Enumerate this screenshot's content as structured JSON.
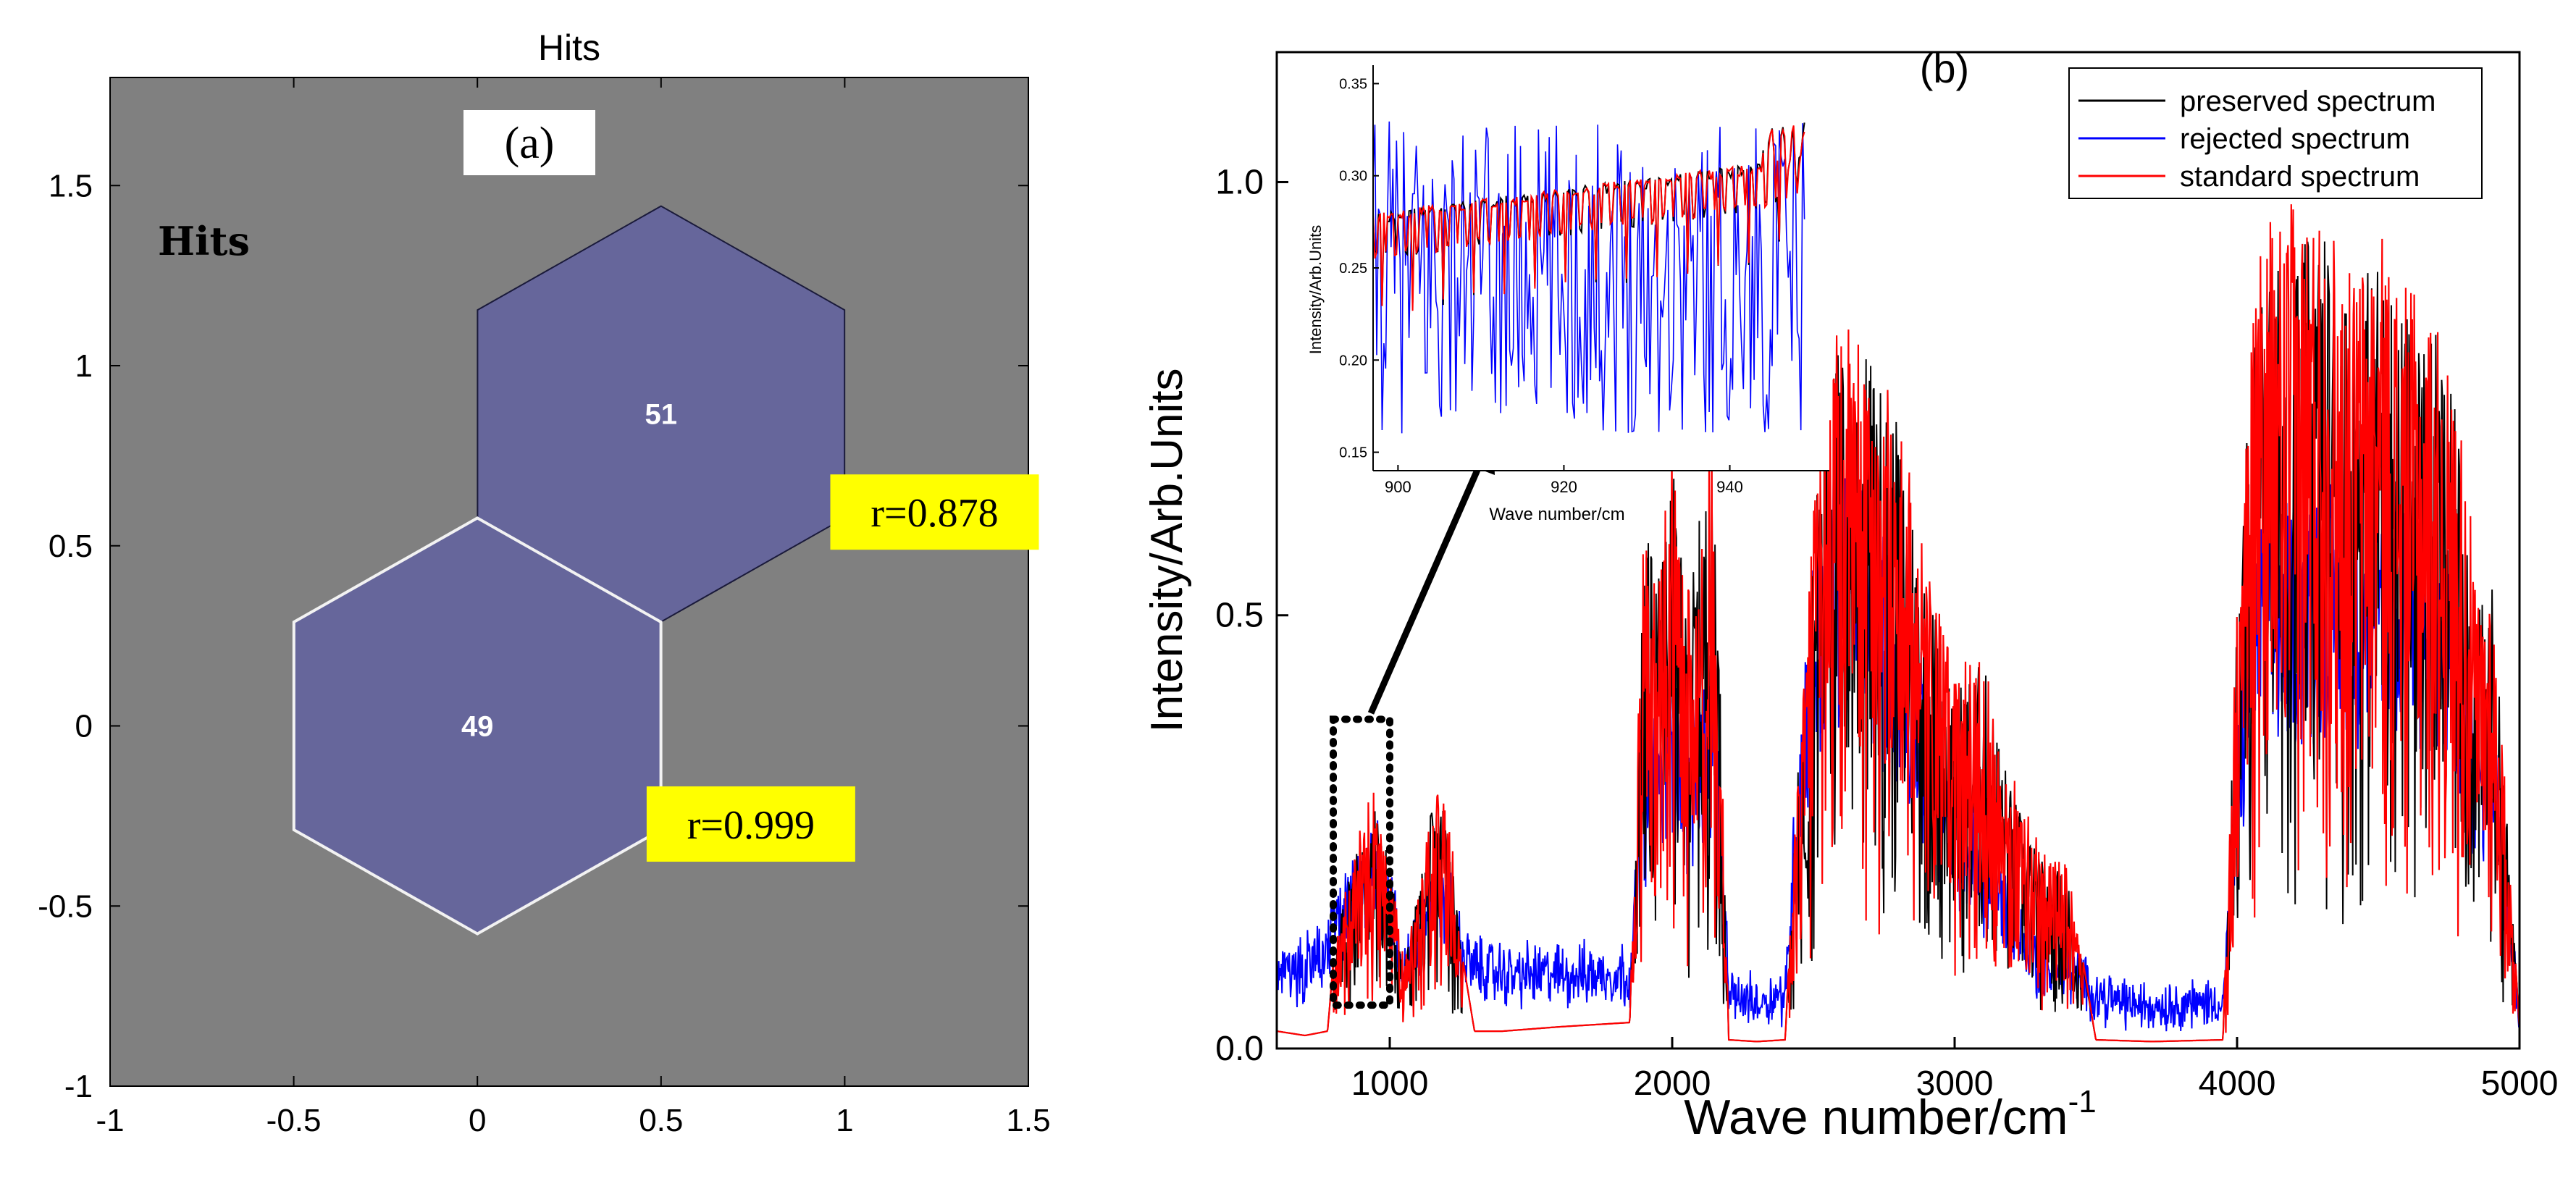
{
  "chart_data": [
    {
      "type": "hexbin",
      "panel_label": "(a)",
      "title": "Hits",
      "legend_text": "Hits",
      "xlim": [
        -1,
        1.5
      ],
      "ylim": [
        -1,
        1.8
      ],
      "xticks": [
        -1,
        -0.5,
        0,
        0.5,
        1,
        1.5
      ],
      "xtick_labels": [
        "-1",
        "-0.5",
        "0",
        "0.5",
        "1",
        "1.5"
      ],
      "yticks": [
        -1,
        -0.5,
        0,
        0.5,
        1,
        1.5
      ],
      "ytick_labels": [
        "-1",
        "-0.5",
        "0",
        "0.5",
        "1",
        "1.5"
      ],
      "hexagons": [
        {
          "cx": 0.5,
          "cy": 0.866,
          "hits": "51",
          "correlation": "r=0.878",
          "highlighted": false
        },
        {
          "cx": 0,
          "cy": 0,
          "hits": "49",
          "correlation": "r=0.999",
          "highlighted": true
        }
      ],
      "hex_radius": 0.577,
      "background_color": "#808080",
      "hex_color": "#66669b"
    },
    {
      "type": "line",
      "panel_label": "(b)",
      "xlabel": "Wave number/cm",
      "xlabel_sup": "-1",
      "ylabel": "Intensity/Arb.Units",
      "xlim": [
        600,
        5000
      ],
      "ylim": [
        0,
        1.15
      ],
      "xticks": [
        1000,
        2000,
        3000,
        4000,
        5000
      ],
      "xtick_labels": [
        "1000",
        "2000",
        "3000",
        "4000",
        "5000"
      ],
      "yticks": [
        0,
        0.5,
        1.0
      ],
      "ytick_labels": [
        "0.0",
        "0.5",
        "1.0"
      ],
      "series": [
        {
          "name": "preserved spectrum",
          "color": "#000000",
          "envelope_x": [
            600,
            700,
            780,
            800,
            850,
            900,
            950,
            1000,
            1050,
            1100,
            1150,
            1200,
            1250,
            1300,
            1400,
            1600,
            1850,
            1900,
            1950,
            2000,
            2050,
            2100,
            2150,
            2200,
            2300,
            2400,
            2450,
            2500,
            2550,
            2600,
            2700,
            2800,
            2900,
            3000,
            3100,
            3200,
            3300,
            3400,
            3500,
            3700,
            3950,
            4000,
            4050,
            4100,
            4200,
            4300,
            4400,
            4500,
            4600,
            4700,
            4800,
            4850,
            4900,
            4950,
            5000
          ],
          "envelope_y": [
            0.02,
            0.015,
            0.02,
            0.1,
            0.2,
            0.26,
            0.28,
            0.22,
            0.1,
            0.18,
            0.28,
            0.3,
            0.12,
            0.02,
            0.02,
            0.025,
            0.03,
            0.6,
            0.55,
            0.68,
            0.5,
            0.62,
            0.7,
            0.01,
            0.008,
            0.01,
            0.35,
            0.6,
            0.8,
            0.82,
            0.8,
            0.72,
            0.55,
            0.42,
            0.45,
            0.3,
            0.22,
            0.2,
            0.01,
            0.008,
            0.01,
            0.5,
            0.82,
            0.9,
            0.92,
            0.95,
            0.88,
            0.92,
            0.85,
            0.83,
            0.7,
            0.5,
            0.55,
            0.3,
            0.02
          ]
        },
        {
          "name": "rejected spectrum",
          "color": "#0000ff",
          "envelope_x": [
            600,
            700,
            780,
            800,
            850,
            900,
            950,
            1000,
            1050,
            1100,
            1150,
            1200,
            1250,
            1300,
            1400,
            1600,
            1850,
            1900,
            1950,
            2000,
            2050,
            2100,
            2150,
            2200,
            2300,
            2400,
            2450,
            2500,
            2550,
            2600,
            2700,
            2800,
            2900,
            3000,
            3100,
            3200,
            3300,
            3400,
            3500,
            3700,
            3950,
            4000,
            4050,
            4100,
            4200,
            4300,
            4400,
            4500,
            4600,
            4700,
            4800,
            4850,
            4900,
            4950,
            5000
          ],
          "envelope_y": [
            0.1,
            0.12,
            0.14,
            0.17,
            0.2,
            0.24,
            0.26,
            0.2,
            0.12,
            0.16,
            0.22,
            0.22,
            0.14,
            0.12,
            0.11,
            0.11,
            0.11,
            0.35,
            0.4,
            0.45,
            0.38,
            0.42,
            0.45,
            0.08,
            0.07,
            0.08,
            0.4,
            0.58,
            0.65,
            0.7,
            0.65,
            0.55,
            0.42,
            0.32,
            0.25,
            0.2,
            0.12,
            0.12,
            0.08,
            0.06,
            0.07,
            0.35,
            0.6,
            0.62,
            0.64,
            0.66,
            0.64,
            0.67,
            0.63,
            0.6,
            0.5,
            0.4,
            0.42,
            0.25,
            0.05
          ]
        },
        {
          "name": "standard spectrum",
          "color": "#ff0000",
          "envelope_x": [
            600,
            700,
            780,
            800,
            850,
            900,
            950,
            1000,
            1050,
            1100,
            1150,
            1200,
            1250,
            1300,
            1400,
            1600,
            1850,
            1900,
            1950,
            2000,
            2050,
            2100,
            2150,
            2200,
            2300,
            2400,
            2450,
            2500,
            2550,
            2600,
            2700,
            2800,
            2900,
            3000,
            3100,
            3200,
            3300,
            3400,
            3500,
            3700,
            3950,
            4000,
            4050,
            4100,
            4200,
            4300,
            4400,
            4500,
            4600,
            4700,
            4800,
            4850,
            4900,
            4950,
            5000
          ],
          "envelope_y": [
            0.02,
            0.015,
            0.02,
            0.1,
            0.2,
            0.27,
            0.3,
            0.22,
            0.1,
            0.18,
            0.28,
            0.32,
            0.12,
            0.02,
            0.02,
            0.025,
            0.03,
            0.62,
            0.57,
            0.7,
            0.52,
            0.64,
            0.72,
            0.01,
            0.008,
            0.01,
            0.36,
            0.62,
            0.82,
            0.84,
            0.82,
            0.74,
            0.56,
            0.44,
            0.46,
            0.32,
            0.24,
            0.21,
            0.01,
            0.008,
            0.01,
            0.52,
            0.85,
            0.95,
            0.98,
            0.99,
            0.9,
            0.95,
            0.88,
            0.85,
            0.72,
            0.52,
            0.56,
            0.3,
            0.02
          ]
        }
      ],
      "annotation": {
        "text": "zoom box",
        "x_range": [
          800,
          1000
        ],
        "y_range": [
          0.05,
          0.38
        ]
      },
      "inset": {
        "xlabel": "Wave number/cm",
        "ylabel": "Intensity/Arb.Units",
        "xlim": [
          897,
          952
        ],
        "ylim": [
          0.14,
          0.36
        ],
        "xticks": [
          900,
          920,
          940
        ],
        "xtick_labels": [
          "900",
          "920",
          "940"
        ],
        "yticks": [
          0.15,
          0.2,
          0.25,
          0.3,
          0.35
        ],
        "ytick_labels": [
          "0.15",
          "0.20",
          "0.25",
          "0.30",
          "0.35"
        ]
      }
    }
  ]
}
